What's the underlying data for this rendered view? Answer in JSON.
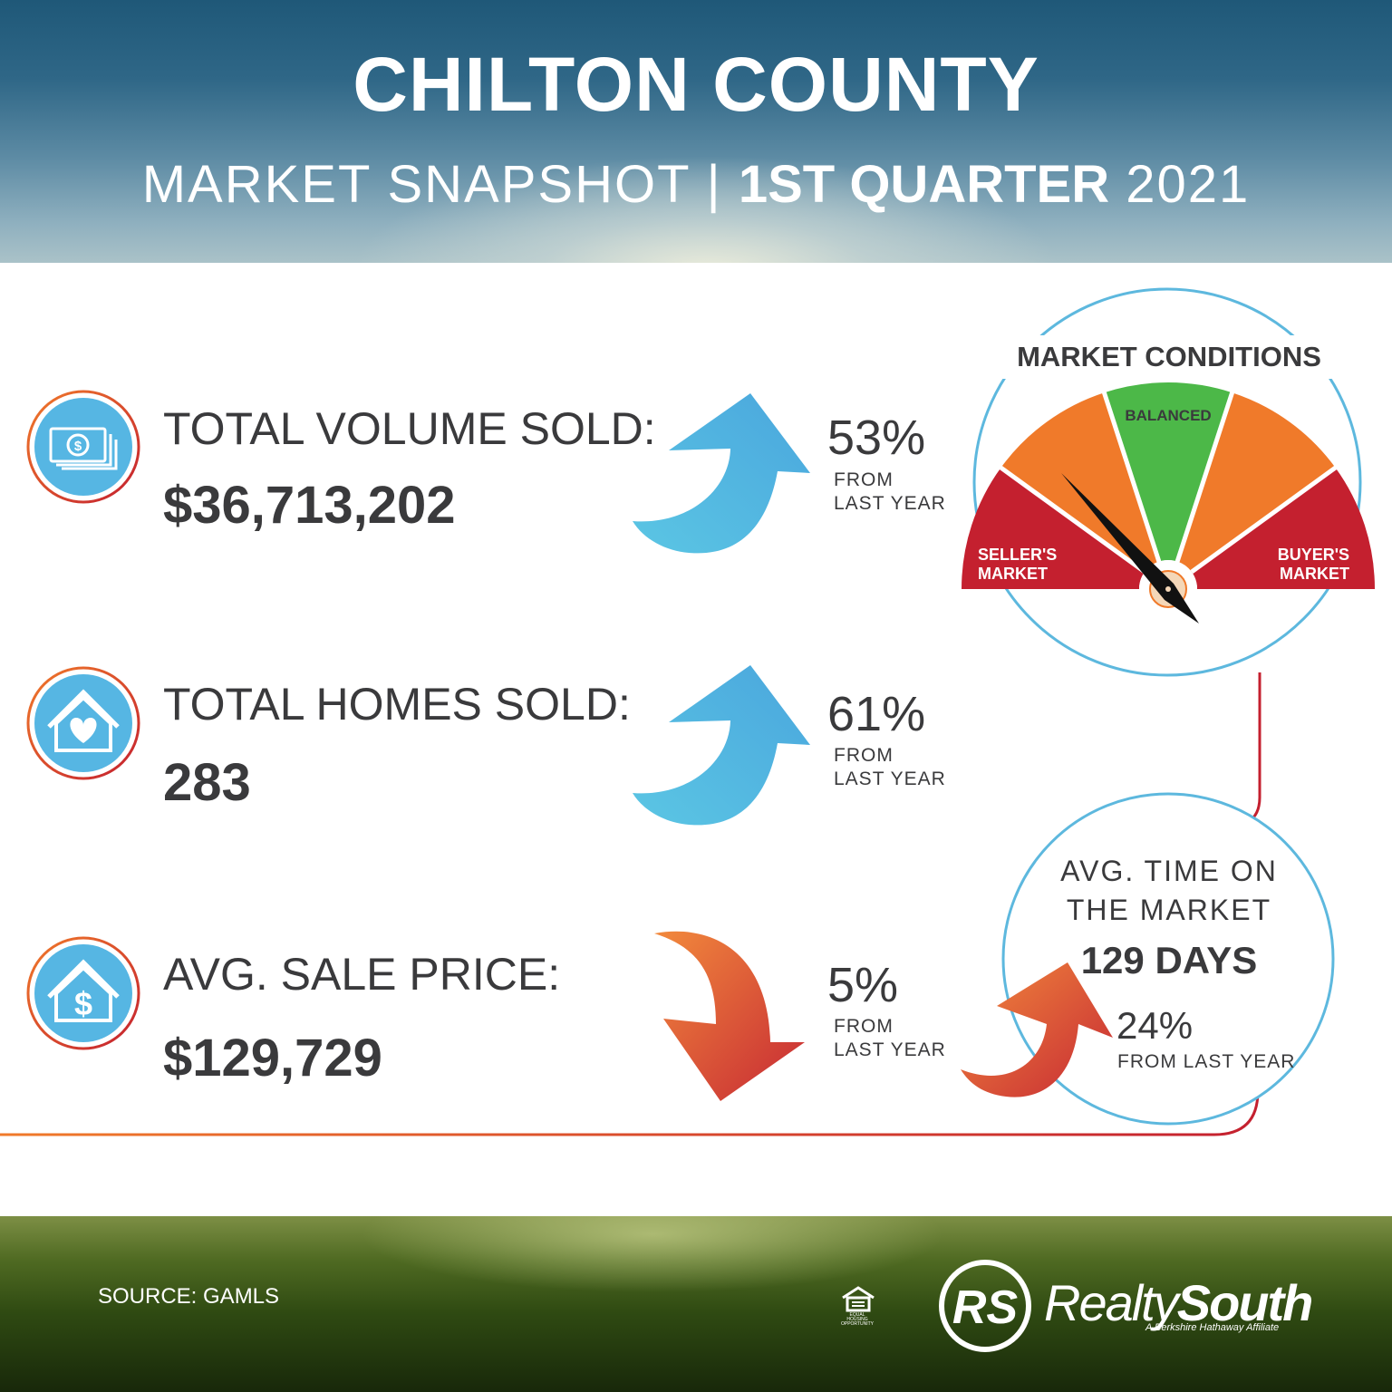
{
  "header": {
    "title": "CHILTON COUNTY",
    "subtitle_left": "MARKET SNAPSHOT",
    "subtitle_sep": "|",
    "subtitle_bold": "1ST QUARTER",
    "subtitle_year": "2021"
  },
  "stats": [
    {
      "label": "TOTAL VOLUME SOLD:",
      "value": "$36,713,202",
      "change": "53%",
      "direction": "up",
      "from_line1": "FROM",
      "from_line2": "LAST YEAR",
      "icon": "money-icon"
    },
    {
      "label": "TOTAL HOMES SOLD:",
      "value": "283",
      "change": "61%",
      "direction": "up",
      "from_line1": "FROM",
      "from_line2": "LAST YEAR",
      "icon": "house-heart-icon"
    },
    {
      "label": "AVG. SALE PRICE:",
      "value": "$129,729",
      "change": "5%",
      "direction": "down",
      "from_line1": "FROM",
      "from_line2": "LAST YEAR",
      "icon": "house-dollar-icon"
    }
  ],
  "market_conditions": {
    "title": "MARKET CONDITIONS",
    "balanced": "BALANCED",
    "sellers_line1": "SELLER'S",
    "sellers_line2": "MARKET",
    "buyers_line1": "BUYER'S",
    "buyers_line2": "MARKET"
  },
  "avg_time": {
    "title_line1": "AVG. TIME ON",
    "title_line2": "THE MARKET",
    "value": "129 DAYS",
    "change": "24%",
    "direction": "up",
    "from": "FROM LAST YEAR"
  },
  "footer": {
    "source": "SOURCE: GAMLS",
    "eho": "EQUAL HOUSING OPPORTUNITY",
    "logo_monogram": "RS",
    "logo_realty": "Realty",
    "logo_south": "South",
    "logo_tagline": "A Berkshire Hathaway Affiliate"
  },
  "colors": {
    "blue_arrow": "#4bb3e0",
    "orange": "#f07a2a",
    "red": "#c4202f",
    "green": "#4cb848",
    "ring_blue": "#5db8de",
    "text": "#3a3a3c"
  }
}
